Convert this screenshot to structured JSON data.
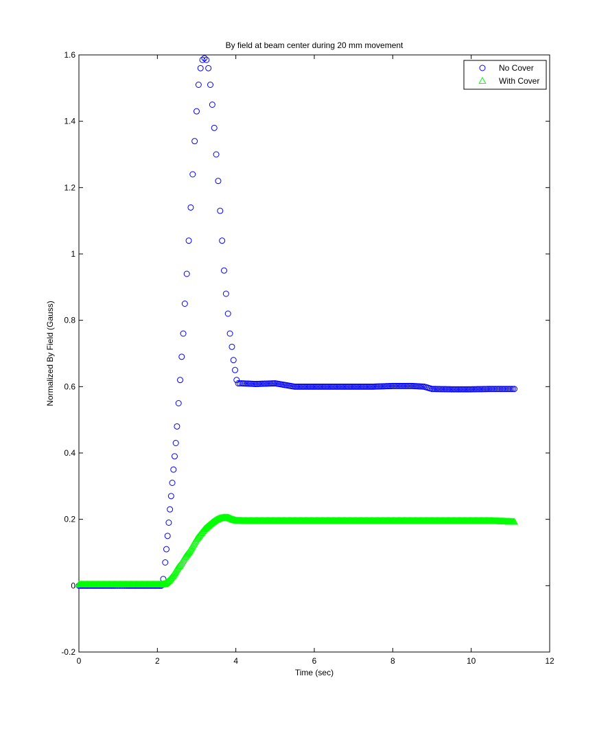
{
  "chart_data": {
    "type": "scatter",
    "title": "By field at beam center during 20 mm movement",
    "xlabel": "Time (sec)",
    "ylabel": "Normalized By Field (Gauss)",
    "xlim": [
      0,
      12
    ],
    "ylim": [
      -0.2,
      1.6
    ],
    "xticks": [
      0,
      2,
      4,
      6,
      8,
      10,
      12
    ],
    "yticks": [
      -0.2,
      0,
      0.2,
      0.4,
      0.6,
      0.8,
      1,
      1.2,
      1.4,
      1.6
    ],
    "xtick_labels": [
      "0",
      "2",
      "4",
      "6",
      "8",
      "10",
      "12"
    ],
    "ytick_labels": [
      "-0.2",
      "0",
      "0.2",
      "0.4",
      "0.6",
      "0.8",
      "1",
      "1.2",
      "1.4",
      "1.6"
    ],
    "grid": false,
    "legend_position": "top-right",
    "series": [
      {
        "name": "No Cover",
        "marker": "circle",
        "color": "#0000ff",
        "x": [
          0.0,
          0.3,
          0.6,
          0.9,
          1.2,
          1.5,
          1.8,
          2.1,
          2.15,
          2.2,
          2.23,
          2.26,
          2.29,
          2.32,
          2.35,
          2.38,
          2.41,
          2.44,
          2.47,
          2.5,
          2.54,
          2.58,
          2.62,
          2.66,
          2.7,
          2.75,
          2.8,
          2.85,
          2.9,
          2.95,
          3.0,
          3.05,
          3.1,
          3.15,
          3.2,
          3.25,
          3.3,
          3.35,
          3.4,
          3.45,
          3.5,
          3.55,
          3.6,
          3.65,
          3.7,
          3.75,
          3.8,
          3.85,
          3.9,
          3.94,
          3.98,
          4.02,
          4.06,
          4.1,
          4.15,
          4.5,
          5.0,
          5.5,
          6.0,
          6.5,
          7.0,
          7.5,
          8.0,
          8.5,
          8.8,
          9.0,
          9.5,
          10.0,
          10.5,
          11.1
        ],
        "y": [
          0.0,
          0.0,
          0.0,
          0.0,
          0.0,
          0.0,
          0.0,
          0.0,
          0.02,
          0.07,
          0.11,
          0.15,
          0.19,
          0.23,
          0.27,
          0.31,
          0.35,
          0.39,
          0.43,
          0.48,
          0.55,
          0.62,
          0.69,
          0.76,
          0.85,
          0.94,
          1.04,
          1.14,
          1.24,
          1.34,
          1.43,
          1.51,
          1.56,
          1.585,
          1.59,
          1.585,
          1.56,
          1.51,
          1.45,
          1.38,
          1.3,
          1.22,
          1.13,
          1.04,
          0.95,
          0.88,
          0.82,
          0.76,
          0.72,
          0.68,
          0.65,
          0.62,
          0.61,
          0.61,
          0.61,
          0.608,
          0.61,
          0.6,
          0.6,
          0.6,
          0.6,
          0.6,
          0.602,
          0.602,
          0.6,
          0.593,
          0.592,
          0.592,
          0.593,
          0.593
        ]
      },
      {
        "name": "With Cover",
        "marker": "triangle",
        "color": "#00ff00",
        "x": [
          0.0,
          0.3,
          0.6,
          0.9,
          1.2,
          1.5,
          1.8,
          2.1,
          2.2,
          2.3,
          2.4,
          2.5,
          2.6,
          2.7,
          2.8,
          2.9,
          3.0,
          3.1,
          3.2,
          3.3,
          3.4,
          3.5,
          3.6,
          3.7,
          3.8,
          3.9,
          4.0,
          4.2,
          4.5,
          5.0,
          5.5,
          6.0,
          6.5,
          7.0,
          7.5,
          8.0,
          8.5,
          9.0,
          9.5,
          10.0,
          10.5,
          11.1
        ],
        "y": [
          0.003,
          0.003,
          0.003,
          0.003,
          0.003,
          0.003,
          0.003,
          0.003,
          0.005,
          0.015,
          0.03,
          0.05,
          0.065,
          0.085,
          0.1,
          0.12,
          0.14,
          0.155,
          0.17,
          0.18,
          0.19,
          0.198,
          0.203,
          0.205,
          0.205,
          0.2,
          0.196,
          0.195,
          0.195,
          0.195,
          0.195,
          0.195,
          0.195,
          0.195,
          0.195,
          0.195,
          0.195,
          0.195,
          0.195,
          0.195,
          0.195,
          0.192
        ]
      }
    ]
  }
}
